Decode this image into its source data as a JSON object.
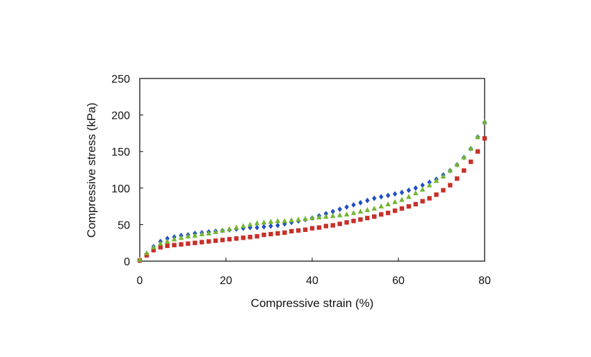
{
  "chart_data": {
    "type": "scatter",
    "title": "",
    "xlabel": "Compressive strain (%)",
    "ylabel": "Compressive stress (kPa)",
    "xlim": [
      0,
      80
    ],
    "ylim": [
      0,
      250
    ],
    "xticks": [
      0,
      20,
      40,
      60,
      80
    ],
    "yticks": [
      0,
      50,
      100,
      150,
      200,
      250
    ],
    "grid": false,
    "legend": "none",
    "series": [
      {
        "marker": "diamond",
        "color": "#1f4fc4",
        "points": [
          [
            0,
            1
          ],
          [
            1.6,
            10
          ],
          [
            3.2,
            20
          ],
          [
            4.8,
            27
          ],
          [
            6.4,
            31
          ],
          [
            8,
            33
          ],
          [
            9.6,
            35
          ],
          [
            11.2,
            36
          ],
          [
            12.8,
            38
          ],
          [
            14.4,
            39
          ],
          [
            16,
            40
          ],
          [
            17.6,
            41
          ],
          [
            19.2,
            42
          ],
          [
            20.8,
            43
          ],
          [
            22.4,
            44
          ],
          [
            24,
            45
          ],
          [
            25.6,
            46
          ],
          [
            27.2,
            46
          ],
          [
            28.8,
            47
          ],
          [
            30.4,
            48
          ],
          [
            32,
            49
          ],
          [
            33.6,
            51
          ],
          [
            35.2,
            53
          ],
          [
            36.8,
            55
          ],
          [
            38.4,
            57
          ],
          [
            40,
            59
          ],
          [
            41.6,
            62
          ],
          [
            43.2,
            65
          ],
          [
            44.8,
            68
          ],
          [
            46.4,
            71
          ],
          [
            48,
            74
          ],
          [
            49.6,
            77
          ],
          [
            51.2,
            80
          ],
          [
            52.8,
            83
          ],
          [
            54.4,
            86
          ],
          [
            56,
            88
          ],
          [
            57.6,
            90
          ],
          [
            59.2,
            92
          ],
          [
            60.8,
            94
          ],
          [
            62.4,
            97
          ],
          [
            64,
            100
          ],
          [
            65.6,
            104
          ],
          [
            67.2,
            108
          ],
          [
            68.8,
            112
          ],
          [
            70.4,
            118
          ],
          [
            72,
            124
          ],
          [
            73.6,
            132
          ],
          [
            75.2,
            142
          ],
          [
            76.8,
            154
          ],
          [
            78.4,
            170
          ],
          [
            80,
            190
          ]
        ]
      },
      {
        "marker": "square",
        "color": "#c8302a",
        "points": [
          [
            0,
            1
          ],
          [
            1.6,
            8
          ],
          [
            3.2,
            15
          ],
          [
            4.8,
            19
          ],
          [
            6.4,
            21
          ],
          [
            8,
            22
          ],
          [
            9.6,
            23
          ],
          [
            11.2,
            24
          ],
          [
            12.8,
            25
          ],
          [
            14.4,
            26
          ],
          [
            16,
            27
          ],
          [
            17.6,
            28
          ],
          [
            19.2,
            29
          ],
          [
            20.8,
            30
          ],
          [
            22.4,
            31
          ],
          [
            24,
            32
          ],
          [
            25.6,
            33
          ],
          [
            27.2,
            34
          ],
          [
            28.8,
            36
          ],
          [
            30.4,
            37
          ],
          [
            32,
            38
          ],
          [
            33.6,
            39
          ],
          [
            35.2,
            41
          ],
          [
            36.8,
            42
          ],
          [
            38.4,
            43
          ],
          [
            40,
            45
          ],
          [
            41.6,
            46
          ],
          [
            43.2,
            48
          ],
          [
            44.8,
            49
          ],
          [
            46.4,
            51
          ],
          [
            48,
            53
          ],
          [
            49.6,
            55
          ],
          [
            51.2,
            57
          ],
          [
            52.8,
            59
          ],
          [
            54.4,
            61
          ],
          [
            56,
            64
          ],
          [
            57.6,
            66
          ],
          [
            59.2,
            69
          ],
          [
            60.8,
            72
          ],
          [
            62.4,
            75
          ],
          [
            64,
            78
          ],
          [
            65.6,
            82
          ],
          [
            67.2,
            86
          ],
          [
            68.8,
            91
          ],
          [
            70.4,
            97
          ],
          [
            72,
            104
          ],
          [
            73.6,
            113
          ],
          [
            75.2,
            124
          ],
          [
            76.8,
            136
          ],
          [
            78.4,
            150
          ],
          [
            80,
            168
          ]
        ]
      },
      {
        "marker": "triangle",
        "color": "#74b531",
        "points": [
          [
            0,
            2
          ],
          [
            1.6,
            11
          ],
          [
            3.2,
            19
          ],
          [
            4.8,
            24
          ],
          [
            6.4,
            27
          ],
          [
            8,
            30
          ],
          [
            9.6,
            32
          ],
          [
            11.2,
            34
          ],
          [
            12.8,
            35
          ],
          [
            14.4,
            37
          ],
          [
            16,
            38
          ],
          [
            17.6,
            40
          ],
          [
            19.2,
            42
          ],
          [
            20.8,
            44
          ],
          [
            22.4,
            46
          ],
          [
            24,
            48
          ],
          [
            25.6,
            50
          ],
          [
            27.2,
            52
          ],
          [
            28.8,
            53
          ],
          [
            30.4,
            54
          ],
          [
            32,
            55
          ],
          [
            33.6,
            55
          ],
          [
            35.2,
            56
          ],
          [
            36.8,
            57
          ],
          [
            38.4,
            58
          ],
          [
            40,
            59
          ],
          [
            41.6,
            60
          ],
          [
            43.2,
            61
          ],
          [
            44.8,
            62
          ],
          [
            46.4,
            63
          ],
          [
            48,
            64
          ],
          [
            49.6,
            66
          ],
          [
            51.2,
            68
          ],
          [
            52.8,
            70
          ],
          [
            54.4,
            72
          ],
          [
            56,
            75
          ],
          [
            57.6,
            78
          ],
          [
            59.2,
            81
          ],
          [
            60.8,
            84
          ],
          [
            62.4,
            88
          ],
          [
            64,
            93
          ],
          [
            65.6,
            98
          ],
          [
            67.2,
            104
          ],
          [
            68.8,
            110
          ],
          [
            70.4,
            116
          ],
          [
            72,
            124
          ],
          [
            73.6,
            132
          ],
          [
            75.2,
            142
          ],
          [
            76.8,
            154
          ],
          [
            78.4,
            170
          ],
          [
            80,
            190
          ]
        ]
      }
    ]
  }
}
